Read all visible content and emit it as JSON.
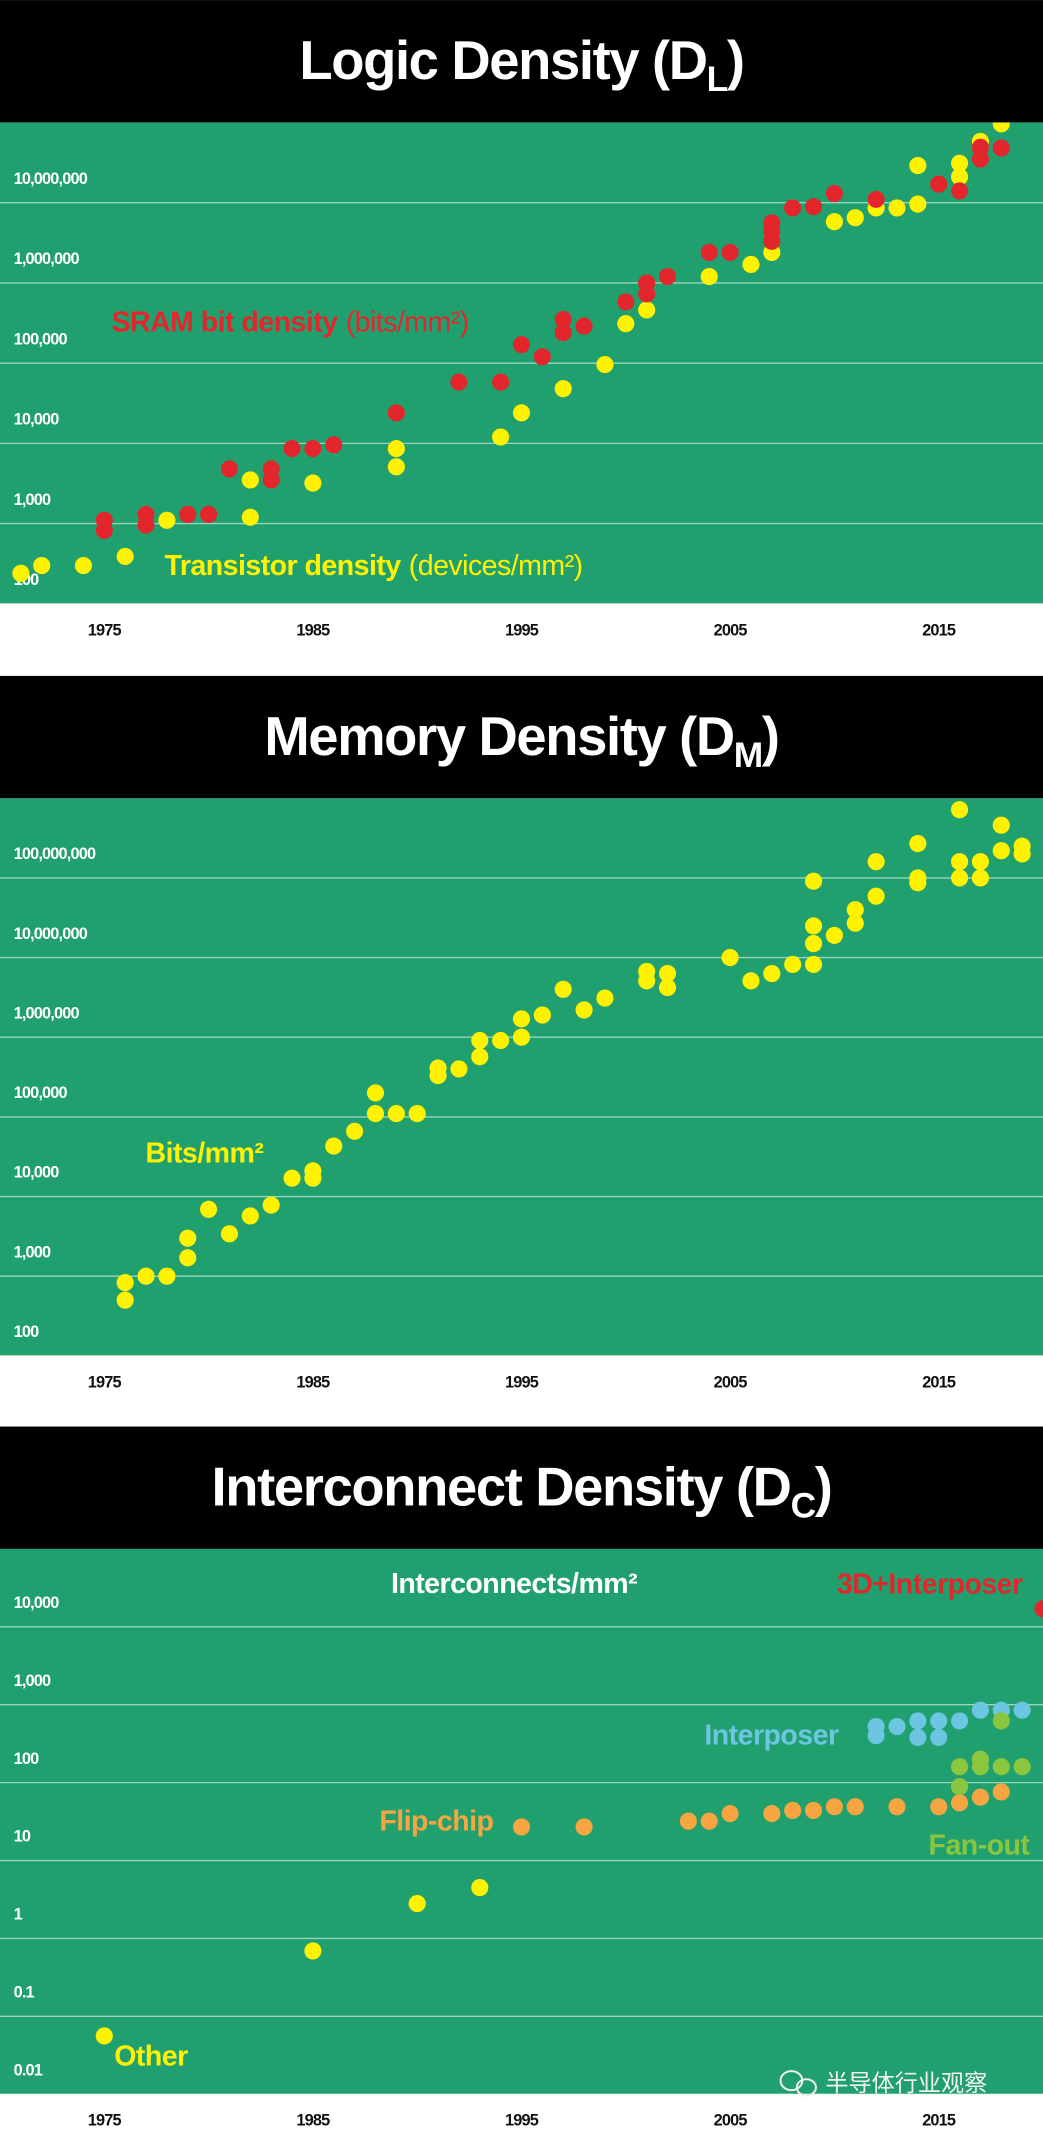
{
  "chart_data": [
    {
      "type": "scatter",
      "title": "Logic Density (D",
      "title_subscript": "L",
      "title_end": ")",
      "log_y": true,
      "grid": true,
      "background": "#21a06f",
      "xlim": [
        1970,
        2020
      ],
      "xticks": [
        1975,
        1985,
        1995,
        2005,
        2015
      ],
      "ylim": [
        100,
        100000000
      ],
      "yticks": [
        100,
        {
          "value": 1000,
          "label": "1,000"
        },
        {
          "value": 10000,
          "label": "10,000"
        },
        {
          "value": 100000,
          "label": "100,000"
        },
        {
          "value": 1000000,
          "label": "1,000,000"
        },
        {
          "value": 10000000,
          "label": "10,000,000"
        }
      ],
      "series": [
        {
          "name": "Transistor density",
          "unit": "(devices/mm²)",
          "color": "#fff200",
          "x": [
            1971,
            1972,
            1974,
            1976,
            1978,
            1982,
            1982,
            1985,
            1989,
            1989,
            1994,
            1995,
            1997,
            1999,
            2000,
            2001,
            2004,
            2006,
            2007,
            2010,
            2011,
            2012,
            2013,
            2014,
            2014,
            2016,
            2016,
            2017,
            2018
          ],
          "values": [
            240,
            300,
            300,
            390,
            1100,
            3500,
            1200,
            3200,
            8600,
            5100,
            12000,
            24000,
            48000,
            96000,
            310000,
            460000,
            1200000,
            1700000,
            2400000,
            5800000,
            6500000,
            8600000,
            8600000,
            9600000,
            29000000,
            31000000,
            21000000,
            58000000,
            96000000
          ]
        },
        {
          "name": "SRAM bit density",
          "unit": "(bits/mm²)",
          "color": "#e3262b",
          "x": [
            1975,
            1975,
            1977,
            1977,
            1979,
            1980,
            1981,
            1983,
            1983,
            1984,
            1985,
            1986,
            1989,
            1992,
            1994,
            1995,
            1996,
            1997,
            1997,
            1998,
            2000,
            2001,
            2001,
            2002,
            2004,
            2005,
            2007,
            2007,
            2007,
            2008,
            2009,
            2010,
            2012,
            2015,
            2016,
            2017,
            2017,
            2018
          ],
          "values": [
            1100,
            820,
            1300,
            960,
            1300,
            1300,
            4800,
            4800,
            3500,
            8600,
            8600,
            9600,
            24000,
            58000,
            58000,
            170000,
            120000,
            350000,
            240000,
            290000,
            580000,
            1000000,
            730000,
            1200000,
            2400000,
            2400000,
            5600000,
            4400000,
            3300000,
            8600000,
            8900000,
            13000000,
            11000000,
            17000000,
            14000000,
            49000000,
            35000000,
            48000000
          ]
        }
      ]
    },
    {
      "type": "scatter",
      "title": "Memory Density (D",
      "title_subscript": "M",
      "title_end": ")",
      "log_y": true,
      "grid": true,
      "background": "#21a06f",
      "xlim": [
        1970,
        2020
      ],
      "xticks": [
        1975,
        1985,
        1995,
        2005,
        2015
      ],
      "ylim": [
        100,
        1000000000
      ],
      "yticks": [
        100,
        {
          "value": 1000,
          "label": "1,000"
        },
        {
          "value": 10000,
          "label": "10,000"
        },
        {
          "value": 100000,
          "label": "100,000"
        },
        {
          "value": 1000000,
          "label": "1,000,000"
        },
        {
          "value": 10000000,
          "label": "10,000,000"
        },
        {
          "value": 100000000,
          "label": "100,000,000"
        }
      ],
      "series": [
        {
          "name": "Bits/mm²",
          "color": "#fff200",
          "x": [
            1976,
            1976,
            1977,
            1978,
            1979,
            1979,
            1980,
            1981,
            1982,
            1983,
            1984,
            1985,
            1985,
            1986,
            1987,
            1988,
            1988,
            1989,
            1990,
            1991,
            1991,
            1992,
            1993,
            1993,
            1994,
            1995,
            1995,
            1996,
            1997,
            1998,
            1999,
            2001,
            2001,
            2002,
            2002,
            2005,
            2006,
            2007,
            2008,
            2009,
            2009,
            2009,
            2009,
            2010,
            2011,
            2011,
            2012,
            2012,
            2014,
            2014,
            2014,
            2016,
            2016,
            2016,
            2017,
            2017,
            2018,
            2018,
            2019,
            2019
          ],
          "values": [
            830,
            500,
            1000,
            1000,
            1700,
            3000,
            6900,
            3400,
            5700,
            7800,
            17000,
            17000,
            21000,
            43000,
            66000,
            110000,
            200000,
            110000,
            110000,
            410000,
            330000,
            400000,
            570000,
            910000,
            910000,
            1000000,
            1700000,
            1900000,
            4000000,
            2200000,
            3100000,
            6700000,
            5100000,
            6300000,
            4200000,
            10000000,
            5100000,
            6300000,
            8200000,
            8200000,
            15000000,
            25000000,
            91000000,
            19000000,
            27000000,
            40000000,
            59000000,
            160000000,
            87000000,
            100000000,
            270000000,
            100000000,
            160000000,
            720000000,
            100000000,
            160000000,
            220000000,
            460000000,
            200000000,
            250000000
          ]
        }
      ]
    },
    {
      "type": "scatter",
      "title": "Interconnect Density (D",
      "title_subscript": "C",
      "title_end": ")",
      "subtitle": "Interconnects/mm²",
      "log_y": true,
      "grid": true,
      "background": "#21a06f",
      "xlim": [
        1970,
        2020
      ],
      "xticks": [
        1975,
        1985,
        1995,
        2005,
        2015
      ],
      "ylim": [
        0.01,
        100000
      ],
      "yticks": [
        0.01,
        0.1,
        1,
        10,
        100,
        {
          "value": 1000,
          "label": "1,000"
        },
        {
          "value": 10000,
          "label": "10,000"
        }
      ],
      "series": [
        {
          "name": "Other",
          "color": "#fff200",
          "x": [
            1975,
            1985,
            1990,
            1993
          ],
          "values": [
            0.056,
            0.69,
            2.8,
            4.5
          ]
        },
        {
          "name": "Flip-chip",
          "color": "#f7a541",
          "x": [
            1995,
            1998,
            2003,
            2004,
            2005,
            2007,
            2008,
            2009,
            2010,
            2011,
            2013,
            2015,
            2016,
            2017,
            2018
          ],
          "values": [
            27,
            27,
            32,
            32,
            40,
            40,
            44,
            44,
            49,
            49,
            49,
            49,
            55,
            65,
            76
          ]
        },
        {
          "name": "Interposer",
          "color": "#6cc5e1",
          "x": [
            2012,
            2012,
            2013,
            2014,
            2014,
            2015,
            2015,
            2016,
            2017,
            2018,
            2019
          ],
          "values": [
            400,
            525,
            525,
            620,
            380,
            620,
            380,
            620,
            850,
            850,
            850
          ]
        },
        {
          "name": "Fan-out",
          "color": "#8cc63f",
          "x": [
            2016,
            2016,
            2017,
            2017,
            2018,
            2018,
            2019
          ],
          "values": [
            89,
            160,
            200,
            160,
            160,
            620,
            160
          ]
        },
        {
          "name": "3D+Interposer",
          "color": "#e3262b",
          "x": [
            2020
          ],
          "values": [
            17000
          ]
        }
      ]
    }
  ],
  "watermark": "半导体行业观察"
}
